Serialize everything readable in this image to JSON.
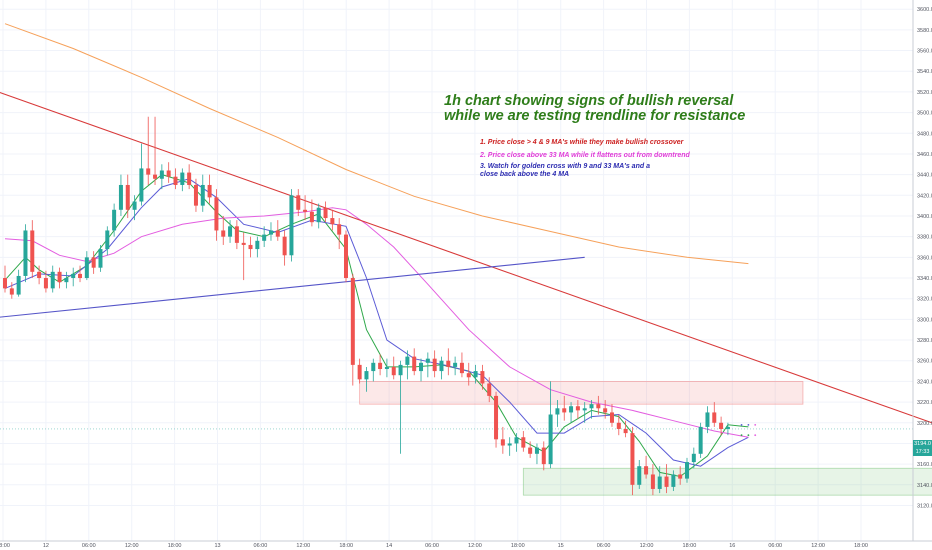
{
  "chart_data": {
    "type": "candlestick",
    "title": "",
    "y_axis": {
      "min": 3105,
      "max": 3606,
      "ticks": [
        3120,
        3140,
        3160,
        3180,
        3200,
        3220,
        3240,
        3260,
        3280,
        3300,
        3320,
        3340,
        3360,
        3380,
        3400,
        3420,
        3440,
        3460,
        3480,
        3500,
        3520,
        3540,
        3560,
        3580,
        3600
      ]
    },
    "x_ticks": [
      "18:00",
      "12",
      "06:00",
      "12:00",
      "18:00",
      "13",
      "06:00",
      "12:00",
      "18:00",
      "14",
      "06:00",
      "12:00",
      "18:00",
      "15",
      "06:00",
      "12:00",
      "18:00",
      "16",
      "06:00",
      "12:00",
      "18:00"
    ],
    "current_price": "3194.0",
    "countdown": "17:33",
    "candles": [
      [
        3340,
        3352,
        3326,
        3330
      ],
      [
        3330,
        3336,
        3320,
        3324
      ],
      [
        3324,
        3348,
        3322,
        3342
      ],
      [
        3342,
        3392,
        3336,
        3386
      ],
      [
        3386,
        3396,
        3340,
        3346
      ],
      [
        3346,
        3352,
        3334,
        3340
      ],
      [
        3340,
        3347,
        3326,
        3330
      ],
      [
        3330,
        3352,
        3326,
        3346
      ],
      [
        3346,
        3350,
        3330,
        3336
      ],
      [
        3336,
        3346,
        3330,
        3340
      ],
      [
        3340,
        3350,
        3332,
        3344
      ],
      [
        3344,
        3352,
        3336,
        3340
      ],
      [
        3340,
        3366,
        3338,
        3360
      ],
      [
        3360,
        3366,
        3344,
        3350
      ],
      [
        3350,
        3372,
        3346,
        3368
      ],
      [
        3368,
        3390,
        3362,
        3386
      ],
      [
        3386,
        3412,
        3380,
        3406
      ],
      [
        3406,
        3440,
        3400,
        3430
      ],
      [
        3430,
        3440,
        3398,
        3406
      ],
      [
        3406,
        3420,
        3396,
        3414
      ],
      [
        3414,
        3470,
        3410,
        3446
      ],
      [
        3446,
        3496,
        3430,
        3440
      ],
      [
        3440,
        3496,
        3430,
        3436
      ],
      [
        3436,
        3450,
        3426,
        3444
      ],
      [
        3444,
        3452,
        3432,
        3438
      ],
      [
        3438,
        3446,
        3426,
        3430
      ],
      [
        3430,
        3446,
        3424,
        3442
      ],
      [
        3442,
        3450,
        3426,
        3430
      ],
      [
        3430,
        3436,
        3404,
        3410
      ],
      [
        3410,
        3440,
        3404,
        3430
      ],
      [
        3430,
        3440,
        3412,
        3418
      ],
      [
        3418,
        3426,
        3376,
        3386
      ],
      [
        3386,
        3400,
        3372,
        3380
      ],
      [
        3380,
        3396,
        3374,
        3390
      ],
      [
        3390,
        3396,
        3368,
        3374
      ],
      [
        3374,
        3384,
        3338,
        3372
      ],
      [
        3372,
        3380,
        3360,
        3368
      ],
      [
        3368,
        3380,
        3360,
        3376
      ],
      [
        3376,
        3390,
        3370,
        3382
      ],
      [
        3382,
        3394,
        3376,
        3386
      ],
      [
        3386,
        3396,
        3376,
        3380
      ],
      [
        3380,
        3386,
        3352,
        3362
      ],
      [
        3362,
        3426,
        3356,
        3420
      ],
      [
        3420,
        3426,
        3400,
        3406
      ],
      [
        3406,
        3420,
        3396,
        3404
      ],
      [
        3404,
        3416,
        3390,
        3394
      ],
      [
        3394,
        3412,
        3388,
        3408
      ],
      [
        3408,
        3414,
        3394,
        3398
      ],
      [
        3398,
        3406,
        3386,
        3392
      ],
      [
        3392,
        3398,
        3368,
        3382
      ],
      [
        3382,
        3386,
        3336,
        3340
      ],
      [
        3340,
        3344,
        3236,
        3256
      ],
      [
        3256,
        3262,
        3238,
        3242
      ],
      [
        3242,
        3254,
        3230,
        3250
      ],
      [
        3250,
        3262,
        3240,
        3258
      ],
      [
        3258,
        3266,
        3246,
        3252
      ],
      [
        3252,
        3262,
        3244,
        3254
      ],
      [
        3254,
        3264,
        3242,
        3246
      ],
      [
        3246,
        3260,
        3170,
        3256
      ],
      [
        3256,
        3270,
        3242,
        3264
      ],
      [
        3264,
        3272,
        3246,
        3250
      ],
      [
        3250,
        3262,
        3240,
        3258
      ],
      [
        3258,
        3268,
        3244,
        3262
      ],
      [
        3262,
        3270,
        3244,
        3250
      ],
      [
        3250,
        3264,
        3242,
        3260
      ],
      [
        3260,
        3272,
        3246,
        3254
      ],
      [
        3254,
        3264,
        3246,
        3258
      ],
      [
        3258,
        3268,
        3244,
        3248
      ],
      [
        3248,
        3258,
        3236,
        3244
      ],
      [
        3244,
        3256,
        3238,
        3250
      ],
      [
        3250,
        3256,
        3232,
        3238
      ],
      [
        3238,
        3244,
        3220,
        3226
      ],
      [
        3226,
        3230,
        3176,
        3184
      ],
      [
        3184,
        3196,
        3170,
        3178
      ],
      [
        3178,
        3186,
        3168,
        3180
      ],
      [
        3180,
        3190,
        3172,
        3186
      ],
      [
        3186,
        3192,
        3172,
        3176
      ],
      [
        3176,
        3182,
        3166,
        3170
      ],
      [
        3170,
        3180,
        3160,
        3176
      ],
      [
        3176,
        3182,
        3154,
        3160
      ],
      [
        3160,
        3240,
        3156,
        3208
      ],
      [
        3208,
        3222,
        3196,
        3214
      ],
      [
        3214,
        3226,
        3202,
        3210
      ],
      [
        3210,
        3220,
        3200,
        3216
      ],
      [
        3216,
        3222,
        3204,
        3212
      ],
      [
        3212,
        3220,
        3200,
        3214
      ],
      [
        3214,
        3222,
        3204,
        3218
      ],
      [
        3218,
        3226,
        3208,
        3214
      ],
      [
        3214,
        3222,
        3204,
        3210
      ],
      [
        3210,
        3218,
        3196,
        3200
      ],
      [
        3200,
        3208,
        3188,
        3194
      ],
      [
        3194,
        3202,
        3186,
        3190
      ],
      [
        3190,
        3196,
        3130,
        3140
      ],
      [
        3140,
        3164,
        3136,
        3158
      ],
      [
        3158,
        3168,
        3146,
        3150
      ],
      [
        3150,
        3160,
        3130,
        3136
      ],
      [
        3136,
        3158,
        3132,
        3148
      ],
      [
        3148,
        3160,
        3132,
        3138
      ],
      [
        3138,
        3154,
        3134,
        3150
      ],
      [
        3150,
        3158,
        3140,
        3146
      ],
      [
        3146,
        3166,
        3142,
        3162
      ],
      [
        3162,
        3176,
        3156,
        3170
      ],
      [
        3170,
        3200,
        3166,
        3196
      ],
      [
        3196,
        3216,
        3190,
        3210
      ],
      [
        3210,
        3220,
        3196,
        3200
      ],
      [
        3200,
        3206,
        3188,
        3194
      ],
      [
        3194,
        3200,
        3188,
        3196
      ]
    ],
    "moving_averages": [
      {
        "name": "4 MA",
        "color": "#2fa84a",
        "values": [
          [
            0,
            3338
          ],
          [
            3,
            3360
          ],
          [
            5,
            3348
          ],
          [
            8,
            3336
          ],
          [
            12,
            3352
          ],
          [
            16,
            3386
          ],
          [
            20,
            3424
          ],
          [
            23,
            3440
          ],
          [
            27,
            3432
          ],
          [
            31,
            3404
          ],
          [
            34,
            3386
          ],
          [
            38,
            3380
          ],
          [
            42,
            3392
          ],
          [
            46,
            3402
          ],
          [
            50,
            3368
          ],
          [
            53,
            3290
          ],
          [
            56,
            3254
          ],
          [
            60,
            3254
          ],
          [
            64,
            3256
          ],
          [
            68,
            3250
          ],
          [
            72,
            3220
          ],
          [
            75,
            3186
          ],
          [
            79,
            3172
          ],
          [
            82,
            3196
          ],
          [
            86,
            3212
          ],
          [
            90,
            3206
          ],
          [
            93,
            3182
          ],
          [
            96,
            3152
          ],
          [
            99,
            3148
          ],
          [
            103,
            3168
          ],
          [
            106,
            3198
          ],
          [
            109,
            3196
          ]
        ]
      },
      {
        "name": "9 MA",
        "color": "#5b5bd6",
        "values": [
          [
            0,
            3330
          ],
          [
            5,
            3344
          ],
          [
            10,
            3342
          ],
          [
            15,
            3368
          ],
          [
            20,
            3408
          ],
          [
            23,
            3428
          ],
          [
            27,
            3436
          ],
          [
            31,
            3418
          ],
          [
            35,
            3392
          ],
          [
            40,
            3384
          ],
          [
            45,
            3396
          ],
          [
            50,
            3390
          ],
          [
            53,
            3340
          ],
          [
            56,
            3280
          ],
          [
            60,
            3262
          ],
          [
            65,
            3255
          ],
          [
            70,
            3246
          ],
          [
            74,
            3220
          ],
          [
            78,
            3190
          ],
          [
            82,
            3190
          ],
          [
            86,
            3206
          ],
          [
            90,
            3208
          ],
          [
            94,
            3190
          ],
          [
            98,
            3164
          ],
          [
            102,
            3158
          ],
          [
            106,
            3176
          ],
          [
            109,
            3186
          ]
        ]
      },
      {
        "name": "33 MA",
        "color": "#e35de0",
        "values": [
          [
            0,
            3378
          ],
          [
            4,
            3376
          ],
          [
            8,
            3362
          ],
          [
            12,
            3356
          ],
          [
            16,
            3364
          ],
          [
            20,
            3380
          ],
          [
            26,
            3392
          ],
          [
            32,
            3398
          ],
          [
            38,
            3400
          ],
          [
            44,
            3404
          ],
          [
            48,
            3408
          ],
          [
            50,
            3406
          ],
          [
            53,
            3392
          ],
          [
            57,
            3370
          ],
          [
            62,
            3334
          ],
          [
            68,
            3290
          ],
          [
            74,
            3254
          ],
          [
            80,
            3232
          ],
          [
            86,
            3220
          ],
          [
            92,
            3212
          ],
          [
            98,
            3202
          ],
          [
            104,
            3192
          ],
          [
            109,
            3186
          ]
        ]
      },
      {
        "name": "200 MA",
        "color": "#f6a15a",
        "values": [
          [
            0,
            3586
          ],
          [
            10,
            3562
          ],
          [
            20,
            3534
          ],
          [
            30,
            3504
          ],
          [
            40,
            3476
          ],
          [
            50,
            3445
          ],
          [
            60,
            3419
          ],
          [
            70,
            3400
          ],
          [
            80,
            3385
          ],
          [
            90,
            3370
          ],
          [
            100,
            3360
          ],
          [
            109,
            3354
          ]
        ]
      }
    ],
    "annotations": {
      "headline": "1h chart showing signs of bullish reversal\nwhile we are testing trendline for resistance",
      "note1": "1. Price close > 4 & 9 MA's while they make bullish crossover",
      "note2": "2. Price close above 33 MA while it flattens out from downtrend",
      "note3": "3. Watch for golden cross with 9 and 33 MA's and a\nclose back above the 4 MA"
    },
    "trendlines": [
      {
        "name": "descending resistance",
        "color": "#d83a3a",
        "from": [
          -1,
          3520
        ],
        "to": [
          159,
          3146
        ]
      },
      {
        "name": "ascending support",
        "color": "#5555c8",
        "from": [
          -1,
          3302
        ],
        "to": [
          85,
          3360
        ]
      }
    ],
    "zones": [
      {
        "name": "resistance zone",
        "color": "#f08080",
        "x_from": 52,
        "x_to": 117,
        "y_from": 3218,
        "y_to": 3240
      },
      {
        "name": "support zone",
        "color": "#7bc47b",
        "x_from": 76,
        "x_to": 158,
        "y_from": 3130,
        "y_to": 3156
      }
    ],
    "colors": {
      "up": "#26a69a",
      "down": "#ef5350",
      "grid": "#f0f3fa",
      "axis_text": "#50535e"
    },
    "legend": "none"
  }
}
